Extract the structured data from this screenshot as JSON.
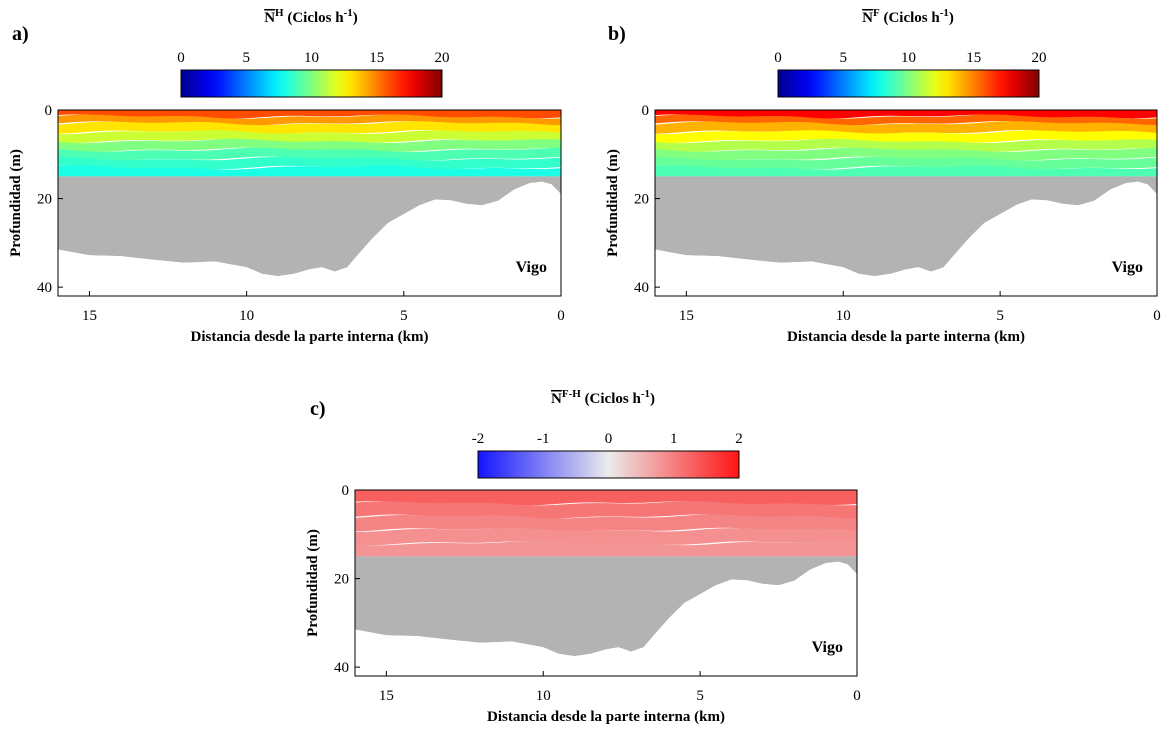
{
  "chart_data": [
    {
      "type": "heatmap",
      "panel_label": "a)",
      "colorbar": {
        "title_main": "N",
        "title_sup": "H",
        "title_units": " (Ciclos h",
        "units_sup": "-1",
        "units_close": ")",
        "ticks": [
          "0",
          "5",
          "10",
          "15",
          "20"
        ],
        "range": [
          0,
          20
        ],
        "colormap": "jet"
      },
      "xlabel": "Distancia desde la parte interna (km)",
      "ylabel": "Profundidad (m)",
      "xticks": [
        "15",
        "10",
        "5",
        "0"
      ],
      "yticks": [
        "0",
        "20",
        "40"
      ],
      "xlim": [
        16,
        0
      ],
      "ylim": [
        0,
        42
      ],
      "annotation": "Vigo",
      "fill_colors": [
        "#b3b3b3"
      ],
      "data_depth_m": 15,
      "layers": [
        {
          "depth": [
            0,
            1.5
          ],
          "value": 16
        },
        {
          "depth": [
            1.5,
            3
          ],
          "value": 14.5
        },
        {
          "depth": [
            3,
            5
          ],
          "value": 13
        },
        {
          "depth": [
            5,
            7
          ],
          "value": 11.5
        },
        {
          "depth": [
            7,
            9
          ],
          "value": 10
        },
        {
          "depth": [
            9,
            11
          ],
          "value": 9
        },
        {
          "depth": [
            11,
            13
          ],
          "value": 8.5
        },
        {
          "depth": [
            13,
            15
          ],
          "value": 8
        }
      ]
    },
    {
      "type": "heatmap",
      "panel_label": "b)",
      "colorbar": {
        "title_main": "N",
        "title_sup": "F",
        "title_units": " (Ciclos h",
        "units_sup": "-1",
        "units_close": ")",
        "ticks": [
          "0",
          "5",
          "10",
          "15",
          "20"
        ],
        "range": [
          0,
          20
        ],
        "colormap": "jet"
      },
      "xlabel": "Distancia desde la parte interna (km)",
      "ylabel": "Profundidad (m)",
      "xticks": [
        "15",
        "10",
        "5",
        "0"
      ],
      "yticks": [
        "0",
        "20",
        "40"
      ],
      "xlim": [
        16,
        0
      ],
      "ylim": [
        0,
        42
      ],
      "annotation": "Vigo",
      "fill_colors": [
        "#b3b3b3"
      ],
      "data_depth_m": 15,
      "layers": [
        {
          "depth": [
            0,
            1.5
          ],
          "value": 17.5
        },
        {
          "depth": [
            1.5,
            3
          ],
          "value": 15.5
        },
        {
          "depth": [
            3,
            5
          ],
          "value": 14
        },
        {
          "depth": [
            5,
            7
          ],
          "value": 12.5
        },
        {
          "depth": [
            7,
            9
          ],
          "value": 11
        },
        {
          "depth": [
            9,
            11
          ],
          "value": 10
        },
        {
          "depth": [
            11,
            13
          ],
          "value": 9.5
        },
        {
          "depth": [
            13,
            15
          ],
          "value": 9
        }
      ]
    },
    {
      "type": "heatmap",
      "panel_label": "c)",
      "colorbar": {
        "title_main": "N",
        "title_sup": "F-H",
        "title_units": " (Ciclos h",
        "units_sup": "-1",
        "units_close": ")",
        "ticks": [
          "-2",
          "-1",
          "0",
          "1",
          "2"
        ],
        "range": [
          -2,
          2
        ],
        "colormap": "blue-white-red"
      },
      "xlabel": "Distancia desde la parte interna (km)",
      "ylabel": "Profundidad (m)",
      "xticks": [
        "15",
        "10",
        "5",
        "0"
      ],
      "yticks": [
        "0",
        "20",
        "40"
      ],
      "xlim": [
        16,
        0
      ],
      "ylim": [
        0,
        42
      ],
      "annotation": "Vigo",
      "fill_colors": [
        "#b3b3b3"
      ],
      "data_depth_m": 15,
      "layers": [
        {
          "depth": [
            0,
            3
          ],
          "value": 1.3
        },
        {
          "depth": [
            3,
            6
          ],
          "value": 1.1
        },
        {
          "depth": [
            6,
            9
          ],
          "value": 0.95
        },
        {
          "depth": [
            9,
            12
          ],
          "value": 0.85
        },
        {
          "depth": [
            12,
            15
          ],
          "value": 0.8
        }
      ]
    }
  ],
  "bathymetry": {
    "x_km": [
      16,
      15,
      14,
      13,
      12,
      11,
      10,
      9.5,
      9,
      8.5,
      8,
      7.6,
      7.2,
      6.8,
      6.5,
      6,
      5.5,
      5,
      4.5,
      4,
      3.5,
      3,
      2.5,
      2,
      1.5,
      1,
      0.6,
      0.3,
      0
    ],
    "depth_m": [
      31.5,
      32.8,
      33,
      33.8,
      34.5,
      34.2,
      35.5,
      37,
      37.5,
      37,
      36,
      35.5,
      36.5,
      35.5,
      33,
      29,
      25.5,
      23.5,
      21.5,
      20.2,
      20.4,
      21.2,
      21.5,
      20.5,
      18,
      16.5,
      16.2,
      16.8,
      19
    ]
  }
}
